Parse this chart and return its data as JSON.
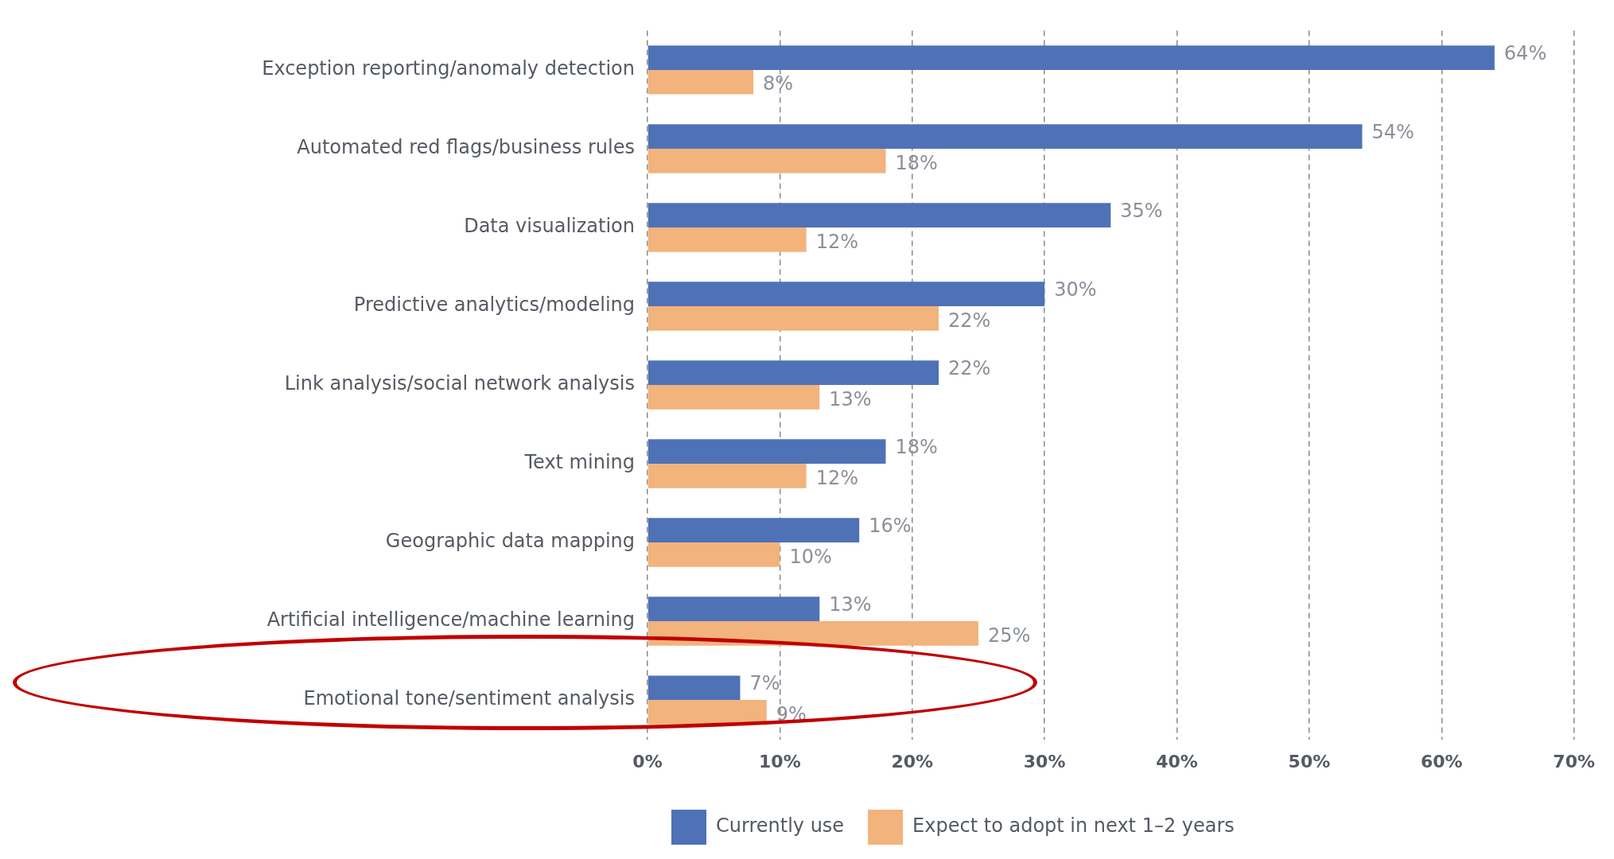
{
  "chart_data": {
    "type": "bar",
    "orientation": "horizontal",
    "categories": [
      "Exception reporting/anomaly detection",
      "Automated red flags/business rules",
      "Data visualization",
      "Predictive analytics/modeling",
      "Link analysis/social network analysis",
      "Text mining",
      "Geographic data mapping",
      "Artificial intelligence/machine learning",
      "Emotional tone/sentiment analysis"
    ],
    "series": [
      {
        "name": "Currently use",
        "color": "#4f71b6",
        "values": [
          64,
          54,
          35,
          30,
          22,
          18,
          16,
          13,
          7
        ],
        "value_labels": [
          "64%",
          "54%",
          "35%",
          "30%",
          "22%",
          "18%",
          "16%",
          "13%",
          "7%"
        ]
      },
      {
        "name": "Expect to adopt in next 1–2 years",
        "color": "#f2b37c",
        "values": [
          8,
          18,
          12,
          22,
          13,
          12,
          10,
          25,
          9
        ],
        "value_labels": [
          "8%",
          "18%",
          "12%",
          "22%",
          "13%",
          "12%",
          "10%",
          "25%",
          "9%"
        ]
      }
    ],
    "xlim": [
      0,
      70
    ],
    "xticks": [
      {
        "value": 0,
        "label": "0%"
      },
      {
        "value": 10,
        "label": "10%"
      },
      {
        "value": 20,
        "label": "20%"
      },
      {
        "value": 30,
        "label": "30%"
      },
      {
        "value": 40,
        "label": "40%"
      },
      {
        "value": 50,
        "label": "50%"
      },
      {
        "value": 60,
        "label": "60%"
      },
      {
        "value": 70,
        "label": "70%"
      }
    ],
    "grid": "x",
    "legend": "bottom"
  }
}
